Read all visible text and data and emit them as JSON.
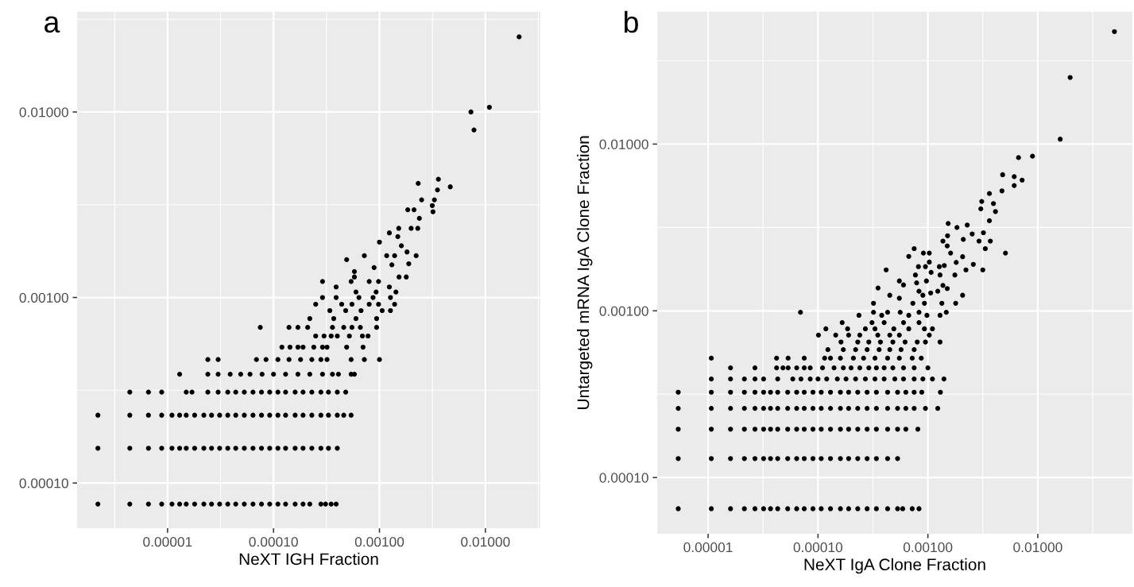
{
  "chart_data": [
    {
      "type": "scatter",
      "title": "a",
      "xlabel": "NeXT IGH Fraction",
      "log": "xy",
      "grid": true,
      "marker": "circle",
      "xlim": [
        1.4e-06,
        0.033
      ],
      "ylim": [
        5.7e-05,
        0.0347
      ],
      "xticks": [
        {
          "value": 1e-05,
          "label": "0.00001"
        },
        {
          "value": 0.0001,
          "label": "0.00010"
        },
        {
          "value": 0.001,
          "label": "0.00100"
        },
        {
          "value": 0.01,
          "label": "0.01000"
        }
      ],
      "yticks": [
        {
          "value": 0.0001,
          "label": "0.00010"
        },
        {
          "value": 0.001,
          "label": "0.00100"
        },
        {
          "value": 0.01,
          "label": "0.01000"
        }
      ],
      "series": [
        {
          "color": "#000000",
          "x": [
            2.2e-06,
            4.4e-06,
            6.6e-06,
            8.8e-06,
            1.1e-05,
            1.3e-05,
            1.5e-05,
            1.8e-05,
            2.2e-05,
            2.6e-05,
            3.1e-05,
            3.7e-05,
            4.4e-05,
            5.3e-05,
            6.4e-05,
            7.7e-05,
            9.2e-05,
            0.00011,
            0.00013,
            0.00016,
            0.00019,
            0.00022,
            0.00028,
            0.00031,
            0.00035,
            0.00039
          ],
          "values": [
            7.7e-05,
            7.7e-05,
            7.7e-05,
            7.7e-05,
            7.7e-05,
            7.7e-05,
            7.7e-05,
            7.7e-05,
            7.7e-05,
            7.7e-05,
            7.7e-05,
            7.7e-05,
            7.7e-05,
            7.7e-05,
            7.7e-05,
            7.7e-05,
            7.7e-05,
            7.7e-05,
            7.7e-05,
            7.7e-05,
            7.7e-05,
            7.7e-05,
            7.7e-05,
            7.7e-05,
            7.7e-05,
            7.7e-05
          ]
        },
        {
          "color": "#000000",
          "x": [
            2.2e-06,
            4.4e-06,
            6.6e-06,
            8.8e-06,
            1.1e-05,
            1.3e-05,
            1.5e-05,
            1.8e-05,
            2.2e-05,
            2.6e-05,
            3.1e-05,
            3.7e-05,
            4.4e-05,
            5.3e-05,
            6.4e-05,
            7.7e-05,
            9.2e-05,
            0.00011,
            0.00013,
            0.00016,
            0.00019,
            0.00023,
            0.00028,
            0.00033,
            0.0004
          ],
          "values": [
            0.000154,
            0.000154,
            0.000154,
            0.000154,
            0.000154,
            0.000154,
            0.000154,
            0.000154,
            0.000154,
            0.000154,
            0.000154,
            0.000154,
            0.000154,
            0.000154,
            0.000154,
            0.000154,
            0.000154,
            0.000154,
            0.000154,
            0.000154,
            0.000154,
            0.000154,
            0.000154,
            0.000154,
            0.000154
          ]
        },
        {
          "color": "#000000",
          "x": [
            2.2e-06,
            4.4e-06,
            6.6e-06,
            8.8e-06,
            1.1e-05,
            1.3e-05,
            1.5e-05,
            1.8e-05,
            2.2e-05,
            2.6e-05,
            3.1e-05,
            3.7e-05,
            4.4e-05,
            5.3e-05,
            6.4e-05,
            7.7e-05,
            9.2e-05,
            0.00011,
            0.00013,
            0.00016,
            0.00019,
            0.00023,
            0.00028,
            0.00033,
            0.0004,
            0.00046,
            0.00054
          ],
          "values": [
            0.000232,
            0.000232,
            0.000232,
            0.000232,
            0.000232,
            0.000232,
            0.000232,
            0.000232,
            0.000232,
            0.000232,
            0.000232,
            0.000232,
            0.000232,
            0.000232,
            0.000232,
            0.000232,
            0.000232,
            0.000232,
            0.000232,
            0.000232,
            0.000232,
            0.000232,
            0.000232,
            0.000232,
            0.000232,
            0.000232,
            0.000232
          ]
        },
        {
          "color": "#000000",
          "x": [
            4.4e-06,
            6.6e-06,
            8.8e-06,
            1.5e-05,
            1.7e-05,
            2.4e-05,
            3e-05,
            3.7e-05,
            4.4e-05,
            5.3e-05,
            6.4e-05,
            7.7e-05,
            9.2e-05,
            0.00011,
            0.00013,
            0.00016,
            0.00019,
            0.00023,
            0.00028,
            0.00033,
            0.0004,
            0.00048
          ],
          "values": [
            0.000309,
            0.000309,
            0.000309,
            0.000309,
            0.000309,
            0.000309,
            0.000309,
            0.000309,
            0.000309,
            0.000309,
            0.000309,
            0.000309,
            0.000309,
            0.000309,
            0.000309,
            0.000309,
            0.000309,
            0.000309,
            0.000309,
            0.000309,
            0.000309,
            0.000309
          ]
        },
        {
          "color": "#000000",
          "x": [
            1.3e-05,
            2.4e-05,
            3e-05,
            3.9e-05,
            4.9e-05,
            6e-05,
            7.8e-05,
            0.0001,
            0.00013,
            0.00017,
            0.00022,
            0.00029,
            0.00036,
            0.00041,
            0.00054,
            0.00058
          ],
          "values": [
            0.000386,
            0.000386,
            0.000386,
            0.000386,
            0.000386,
            0.000386,
            0.000386,
            0.000386,
            0.000386,
            0.000386,
            0.000386,
            0.000386,
            0.000386,
            0.000386,
            0.000386,
            0.000386
          ]
        },
        {
          "color": "#000000",
          "x": [
            2.4e-05,
            3e-05,
            6.9e-05,
            8.5e-05,
            0.00011,
            0.00014,
            0.00018,
            0.00023,
            0.00028,
            0.00032,
            0.00054,
            0.00072,
            0.001
          ],
          "values": [
            0.000463,
            0.000463,
            0.000463,
            0.000463,
            0.000463,
            0.000463,
            0.000463,
            0.000463,
            0.000463,
            0.000463,
            0.000463,
            0.000463,
            0.000463
          ]
        },
        {
          "color": "#000000",
          "x": [
            0.00012,
            0.000143,
            0.00017,
            0.00019,
            0.00024,
            0.00029,
            0.00032,
            0.00049,
            0.0007
          ],
          "values": [
            0.00054,
            0.00054,
            0.00054,
            0.00054,
            0.00054,
            0.00054,
            0.00054,
            0.00054,
            0.00054
          ]
        },
        {
          "color": "#000000",
          "x": [
            0.00025,
            0.0003,
            0.00035,
            0.0004,
            0.00052,
            0.00069,
            0.00078
          ],
          "values": [
            0.00062,
            0.00062,
            0.00062,
            0.00062,
            0.00062,
            0.00062,
            0.00062
          ]
        },
        {
          "color": "#000000",
          "x": [
            7.5e-05,
            0.00014,
            0.00017,
            0.00021,
            0.00036,
            0.00046,
            0.00055,
            0.00066,
            0.00094
          ],
          "values": [
            0.00069,
            0.00069,
            0.00069,
            0.00069,
            0.00069,
            0.00069,
            0.00069,
            0.00069,
            0.00069
          ]
        },
        {
          "color": "#000000",
          "x": [
            0.00022,
            0.00037,
            0.0006,
            0.00094,
            0.00034,
            0.00048,
            0.00067,
            0.00106,
            0.00127,
            0.00025,
            0.00044,
            0.00055,
            0.0008,
            0.00098,
            0.00139,
            0.00029,
            0.00039,
            0.00064,
            0.00087,
            0.00127
          ],
          "values": [
            0.00077,
            0.00077,
            0.00077,
            0.00077,
            0.00085,
            0.00085,
            0.00085,
            0.00085,
            0.00085,
            0.00092,
            0.00092,
            0.00092,
            0.00092,
            0.00092,
            0.00092,
            0.001,
            0.001,
            0.001,
            0.001,
            0.001
          ]
        },
        {
          "color": "#000000",
          "x": [
            0.0006,
            0.00093,
            0.00143,
            0.00039,
            0.00124,
            0.00029,
            0.00054,
            0.0008,
            0.00098,
            0.00058,
            0.00153,
            0.00179,
            0.00058,
            0.00089,
            0.00131,
            0.00189,
            0.00049,
            0.00072,
            0.00117,
            0.00139,
            0.00222,
            0.00182,
            0.00161,
            0.001,
            0.00149,
            0.00124,
            0.00152,
            0.00199,
            0.0023,
            0.00238,
            0.00185,
            0.00212,
            0.0032,
            0.00315,
            0.0025,
            0.0033,
            0.00353,
            0.00466,
            0.00232,
            0.0036,
            0.0078,
            0.0073,
            0.0109,
            0.0208
          ],
          "values": [
            0.00107,
            0.00107,
            0.00107,
            0.00114,
            0.00114,
            0.00122,
            0.00122,
            0.00122,
            0.00122,
            0.00129,
            0.00129,
            0.00129,
            0.00138,
            0.00145,
            0.0015,
            0.00152,
            0.0016,
            0.00168,
            0.00168,
            0.00168,
            0.00168,
            0.00176,
            0.0019,
            0.00199,
            0.00213,
            0.00223,
            0.00236,
            0.00236,
            0.00236,
            0.00267,
            0.00297,
            0.00297,
            0.0029,
            0.00313,
            0.00336,
            0.00336,
            0.0038,
            0.00395,
            0.00412,
            0.00434,
            0.008,
            0.01,
            0.0106,
            0.0254
          ]
        }
      ]
    },
    {
      "type": "scatter",
      "title": "b",
      "xlabel": "NeXT IgA Clone Fraction",
      "ylabel": "Untargeted mRNA IgA Clone Fraction",
      "log": "xy",
      "grid": true,
      "marker": "circle",
      "xlim": [
        3.44e-06,
        0.0726
      ],
      "ylim": [
        4.6e-05,
        0.0622
      ],
      "xticks": [
        {
          "value": 1e-05,
          "label": "0.00001"
        },
        {
          "value": 0.0001,
          "label": "0.00010"
        },
        {
          "value": 0.001,
          "label": "0.00100"
        },
        {
          "value": 0.01,
          "label": "0.01000"
        }
      ],
      "yticks": [
        {
          "value": 0.0001,
          "label": "0.00010"
        },
        {
          "value": 0.001,
          "label": "0.00100"
        },
        {
          "value": 0.01,
          "label": "0.01000"
        }
      ],
      "series": [
        {
          "color": "#000000",
          "x": [
            5.35e-06,
            1.07e-05,
            1.6e-05,
            2.14e-05,
            2.67e-05,
            3.2e-05,
            3.7e-05,
            4.3e-05,
            5.3e-05,
            6.4e-05,
            7.5e-05,
            9e-05,
            0.000107,
            0.00013,
            0.00016,
            0.00019,
            0.00023,
            0.00028,
            0.00034,
            0.00043,
            0.00053,
            0.00059,
            0.00072,
            0.00083
          ],
          "values": [
            6.5e-05,
            6.5e-05,
            6.5e-05,
            6.5e-05,
            6.5e-05,
            6.5e-05,
            6.5e-05,
            6.5e-05,
            6.5e-05,
            6.5e-05,
            6.5e-05,
            6.5e-05,
            6.5e-05,
            6.5e-05,
            6.5e-05,
            6.5e-05,
            6.5e-05,
            6.5e-05,
            6.5e-05,
            6.5e-05,
            6.5e-05,
            6.5e-05,
            6.5e-05,
            6.5e-05
          ]
        },
        {
          "color": "#000000",
          "x": [
            5.35e-06,
            1.07e-05,
            1.6e-05,
            2.14e-05,
            2.67e-05,
            3.2e-05,
            3.7e-05,
            4.3e-05,
            5.3e-05,
            6.4e-05,
            7.5e-05,
            9e-05,
            0.000107,
            0.00013,
            0.00016,
            0.00019,
            0.00023,
            0.00028,
            0.00034,
            0.00043,
            0.00053
          ],
          "values": [
            0.00013,
            0.00013,
            0.00013,
            0.00013,
            0.00013,
            0.00013,
            0.00013,
            0.00013,
            0.00013,
            0.00013,
            0.00013,
            0.00013,
            0.00013,
            0.00013,
            0.00013,
            0.00013,
            0.00013,
            0.00013,
            0.00013,
            0.00013,
            0.00013
          ]
        },
        {
          "color": "#000000",
          "x": [
            5.35e-06,
            1.07e-05,
            1.6e-05,
            2.14e-05,
            2.67e-05,
            3.2e-05,
            3.7e-05,
            4.3e-05,
            5.3e-05,
            6.4e-05,
            7.5e-05,
            9e-05,
            0.000107,
            0.00013,
            0.00016,
            0.00019,
            0.00023,
            0.00028,
            0.00034,
            0.00043,
            0.00053,
            0.00063,
            0.00081
          ],
          "values": [
            0.000195,
            0.000195,
            0.000195,
            0.000195,
            0.000195,
            0.000195,
            0.000195,
            0.000195,
            0.000195,
            0.000195,
            0.000195,
            0.000195,
            0.000195,
            0.000195,
            0.000195,
            0.000195,
            0.000195,
            0.000195,
            0.000195,
            0.000195,
            0.000195,
            0.000195,
            0.000195
          ]
        },
        {
          "color": "#000000",
          "x": [
            5.35e-06,
            1.07e-05,
            1.6e-05,
            2.14e-05,
            2.67e-05,
            3.2e-05,
            3.7e-05,
            4.3e-05,
            5.3e-05,
            6.4e-05,
            7.5e-05,
            9e-05,
            0.000107,
            0.00013,
            0.00016,
            0.00019,
            0.00023,
            0.00028,
            0.00034,
            0.00043,
            0.00053,
            0.00063,
            0.00075,
            0.00095,
            0.00123
          ],
          "values": [
            0.00026,
            0.00026,
            0.00026,
            0.00026,
            0.00026,
            0.00026,
            0.00026,
            0.00026,
            0.00026,
            0.00026,
            0.00026,
            0.00026,
            0.00026,
            0.00026,
            0.00026,
            0.00026,
            0.00026,
            0.00026,
            0.00026,
            0.00026,
            0.00026,
            0.00026,
            0.00026,
            0.00026,
            0.00026
          ]
        },
        {
          "color": "#000000",
          "x": [
            5.35e-06,
            1.07e-05,
            1.6e-05,
            2.14e-05,
            2.67e-05,
            3.2e-05,
            3.7e-05,
            4.3e-05,
            5.3e-05,
            6.4e-05,
            7.5e-05,
            9e-05,
            0.000107,
            0.00013,
            0.00016,
            0.00019,
            0.00023,
            0.00028,
            0.00034,
            0.00043,
            0.00053,
            0.00063,
            0.00075,
            0.00088,
            0.0013
          ],
          "values": [
            0.000325,
            0.000325,
            0.000325,
            0.000325,
            0.000325,
            0.000325,
            0.000325,
            0.000325,
            0.000325,
            0.000325,
            0.000325,
            0.000325,
            0.000325,
            0.000325,
            0.000325,
            0.000325,
            0.000325,
            0.000325,
            0.000325,
            0.000325,
            0.000325,
            0.000325,
            0.000325,
            0.000325,
            0.000325
          ]
        },
        {
          "color": "#000000",
          "x": [
            1.07e-05,
            1.6e-05,
            2.14e-05,
            2.67e-05,
            3.2e-05,
            4.3e-05,
            5.9e-05,
            7e-05,
            8.5e-05,
            0.0001,
            0.00012,
            0.00015,
            0.00018,
            0.00022,
            0.00027,
            0.00033,
            0.0004,
            0.0005,
            0.0006,
            0.00075,
            0.0009,
            0.0011,
            0.0014
          ],
          "values": [
            0.00039,
            0.00039,
            0.00039,
            0.00039,
            0.00039,
            0.00039,
            0.00039,
            0.00039,
            0.00039,
            0.00039,
            0.00039,
            0.00039,
            0.00039,
            0.00039,
            0.00039,
            0.00039,
            0.00039,
            0.00039,
            0.00039,
            0.00039,
            0.00039,
            0.00039,
            0.00039
          ]
        },
        {
          "color": "#000000",
          "x": [
            1.6e-05,
            2.67e-05,
            4.2e-05,
            4.8e-05,
            5.35e-05,
            6.4e-05,
            7.5e-05,
            8.5e-05,
            0.00011,
            0.00014,
            0.00017,
            0.0002,
            0.00024,
            0.00029,
            0.00034,
            0.0004,
            0.00048,
            0.0006,
            0.00075,
            0.001
          ],
          "values": [
            0.000455,
            0.000455,
            0.000455,
            0.000455,
            0.000455,
            0.000455,
            0.000455,
            0.000455,
            0.000455,
            0.000455,
            0.000455,
            0.000455,
            0.000455,
            0.000455,
            0.000455,
            0.000455,
            0.000455,
            0.000455,
            0.000455,
            0.000455
          ]
        },
        {
          "color": "#000000",
          "x": [
            1.07e-05,
            4.2e-05,
            5.35e-05,
            7.5e-05,
            0.000115,
            0.00013,
            0.00016,
            0.00021,
            0.00026,
            0.00033,
            0.00043,
            0.00055,
            0.00072,
            0.00087
          ],
          "values": [
            0.00052,
            0.00052,
            0.00052,
            0.00052,
            0.00052,
            0.00052,
            0.00052,
            0.00052,
            0.00052,
            0.00052,
            0.00052,
            0.00052,
            0.00052,
            0.00052
          ]
        },
        {
          "color": "#000000",
          "x": [
            0.000123,
            0.00017,
            0.00022,
            0.00028,
            0.00036,
            0.00045,
            0.00057,
            0.00075,
            0.000162,
            0.00023,
            0.00029,
            0.00037,
            0.00048,
            0.00062,
            0.0008,
            0.00095,
            0.00129
          ],
          "values": [
            0.000585,
            0.000585,
            0.000585,
            0.000585,
            0.000585,
            0.000585,
            0.000585,
            0.000585,
            0.00065,
            0.00065,
            0.00065,
            0.00065,
            0.00065,
            0.00065,
            0.00065,
            0.00065,
            0.00065
          ]
        },
        {
          "color": "#000000",
          "x": [
            0.000101,
            0.000145,
            0.00019,
            0.00024,
            0.00035,
            0.00045,
            0.00055,
            0.00103,
            0.000118,
            0.000186,
            0.00027,
            0.00033,
            0.00049,
            0.00067,
            0.00093,
            0.0011
          ],
          "values": [
            0.000715,
            0.000715,
            0.000715,
            0.000715,
            0.000715,
            0.000715,
            0.000715,
            0.000715,
            0.00078,
            0.00078,
            0.00078,
            0.00078,
            0.00078,
            0.00078,
            0.00078,
            0.00078
          ]
        },
        {
          "color": "#000000",
          "x": [
            0.000166,
            0.00031,
            0.0004,
            0.0006,
            0.00083,
            0.000236,
            0.00038,
            0.00067,
            0.00098,
            0.00129,
            6.93e-05,
            0.00032,
            0.00043,
            0.00056,
            0.00083,
            0.00147
          ],
          "values": [
            0.00085,
            0.00085,
            0.00085,
            0.00085,
            0.00085,
            0.00094,
            0.00094,
            0.00094,
            0.00094,
            0.00094,
            0.00098,
            0.00098,
            0.00098,
            0.00098,
            0.00098,
            0.00098
          ]
        },
        {
          "color": "#000000",
          "x": [
            0.00032,
            0.00073,
            0.00093,
            0.00134,
            0.00179,
            0.00055,
            0.00045,
            0.0009,
            0.00207,
            0.00106,
            0.00083,
            0.00123,
            0.0015,
            0.000352,
            0.00137,
            0.0006,
            0.00079,
            0.00055,
            0.00097,
            0.00077,
            0.00129,
            0.00176,
            0.00107,
            0.000417,
            0.00222,
            0.00316,
            0.00082,
            0.00095,
            0.00127,
            0.00141,
            0.00259,
            0.00181,
            0.00103,
            0.00207,
            0.00067,
            0.00091,
            0.00103,
            0.00161,
            0.00508,
            0.00075,
            0.00333,
            0.0015,
            0.00137,
            0.00292,
            0.0037,
            0.0021,
            0.00151,
            0.00253,
            0.0032,
            0.00184,
            0.00228,
            0.00153,
            0.00363,
            0.00412,
            0.00303,
            0.00395,
            0.00309,
            0.00363,
            0.00472,
            0.0061,
            0.0072,
            0.0061,
            0.00479,
            0.00668,
            0.00895,
            0.016,
            0.0197,
            0.0498
          ],
          "values": [
            0.00111,
            0.00111,
            0.00111,
            0.00111,
            0.00111,
            0.00119,
            0.00124,
            0.00124,
            0.00124,
            0.00128,
            0.00131,
            0.00131,
            0.00136,
            0.00137,
            0.00142,
            0.00143,
            0.00147,
            0.00151,
            0.00151,
            0.00164,
            0.00164,
            0.00164,
            0.0017,
            0.00176,
            0.00176,
            0.00176,
            0.00184,
            0.00184,
            0.00184,
            0.00187,
            0.0019,
            0.00195,
            0.00196,
            0.00211,
            0.00212,
            0.00222,
            0.00222,
            0.00222,
            0.00222,
            0.00236,
            0.00236,
            0.00245,
            0.00262,
            0.00262,
            0.00262,
            0.00268,
            0.00282,
            0.00289,
            0.00294,
            0.00316,
            0.00327,
            0.00334,
            0.00347,
            0.00394,
            0.00409,
            0.0044,
            0.00453,
            0.00505,
            0.00524,
            0.00564,
            0.00608,
            0.00638,
            0.00655,
            0.0083,
            0.00846,
            0.0107,
            0.0251,
            0.0473
          ]
        }
      ]
    }
  ]
}
